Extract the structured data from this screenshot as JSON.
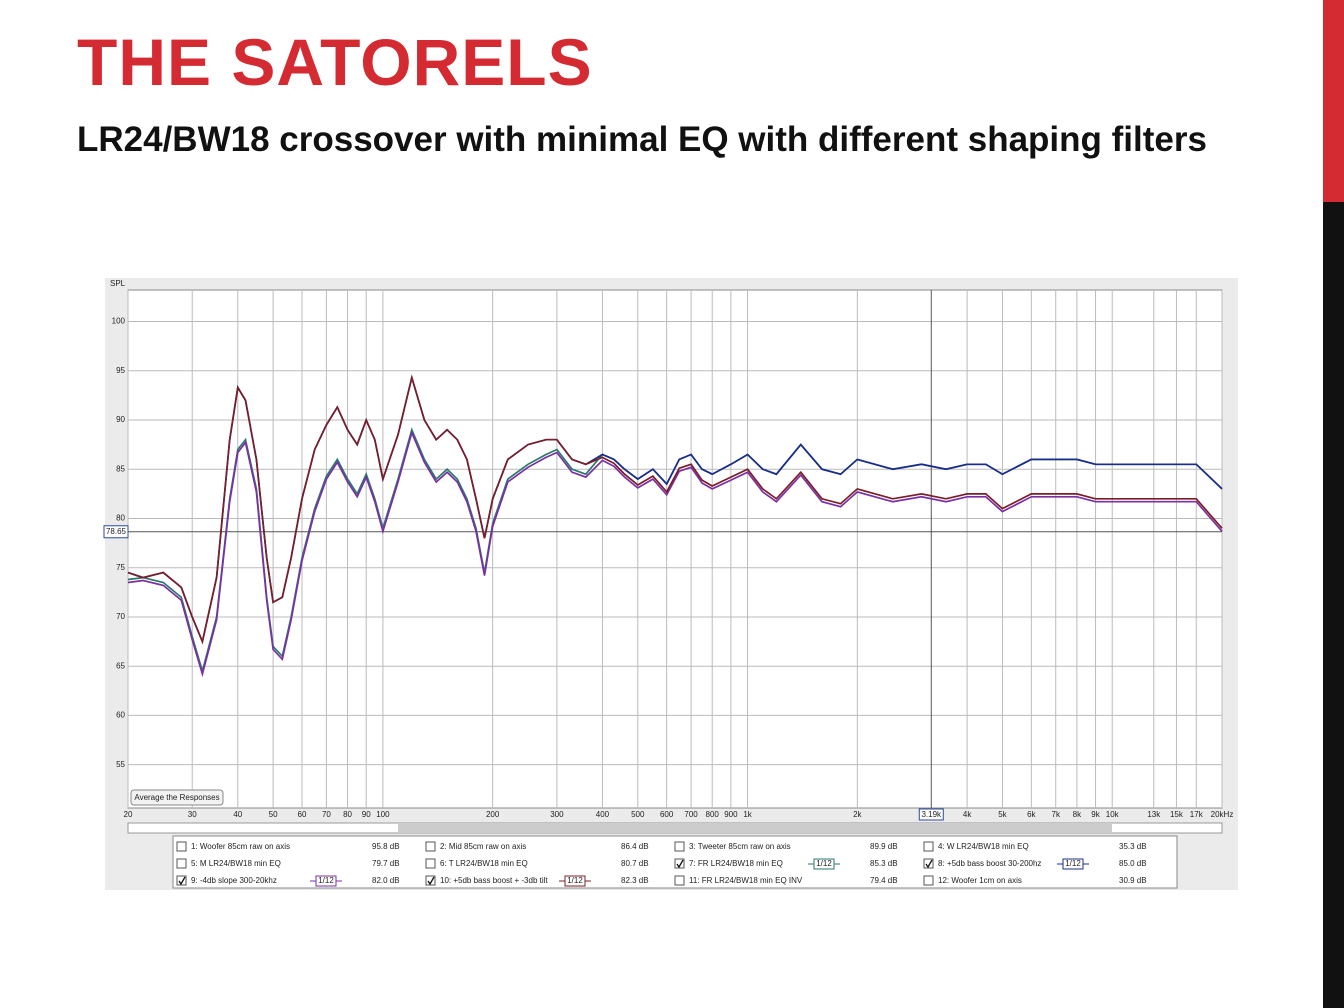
{
  "header": {
    "title": "THE SATORELS",
    "subtitle": "LR24/BW18 crossover with minimal EQ with different shaping filters"
  },
  "chart_data": {
    "type": "line",
    "y_label": "SPL",
    "x_scale": "log",
    "grid": true,
    "button": "Average the Responses",
    "smoothing": "1/12",
    "cursor": {
      "x": {
        "value": 3190,
        "label": "3.19k"
      },
      "y": 78.65
    },
    "xlim": [
      20,
      20000
    ],
    "ylim": [
      50.6,
      103.2
    ],
    "yticks": [
      55,
      60,
      65,
      70,
      75,
      80,
      85,
      90,
      95,
      100
    ],
    "xticks": [
      20,
      30,
      40,
      50,
      60,
      70,
      80,
      90,
      100,
      200,
      300,
      400,
      500,
      600,
      700,
      800,
      900,
      {
        "value": 1000,
        "label": "1k"
      },
      {
        "value": 2000,
        "label": "2k"
      },
      {
        "value": 4000,
        "label": "4k"
      },
      {
        "value": 5000,
        "label": "5k"
      },
      {
        "value": 6000,
        "label": "6k"
      },
      {
        "value": 7000,
        "label": "7k"
      },
      {
        "value": 8000,
        "label": "8k"
      },
      {
        "value": 9000,
        "label": "9k"
      },
      {
        "value": 10000,
        "label": "10k"
      },
      {
        "value": 13000,
        "label": "13k"
      },
      {
        "value": 15000,
        "label": "15k"
      },
      {
        "value": 17000,
        "label": "17k"
      },
      {
        "value": 20000,
        "label": "20kHz"
      }
    ],
    "x": [
      20,
      22,
      25,
      28,
      30,
      32,
      35,
      38,
      40,
      42,
      45,
      48,
      50,
      53,
      56,
      60,
      65,
      70,
      75,
      80,
      85,
      90,
      95,
      100,
      110,
      120,
      130,
      140,
      150,
      160,
      170,
      180,
      190,
      200,
      220,
      250,
      280,
      300,
      330,
      360,
      400,
      430,
      460,
      500,
      550,
      600,
      650,
      700,
      750,
      800,
      900,
      1000,
      1100,
      1200,
      1400,
      1600,
      1800,
      2000,
      2500,
      3000,
      3500,
      4000,
      4500,
      5000,
      6000,
      7000,
      8000,
      9000,
      10000,
      12000,
      14000,
      17000,
      20000
    ],
    "series": [
      {
        "name": "1: Woofer 85cm raw on axis",
        "level": "95.8 dB",
        "color": "#c02020",
        "visible": false
      },
      {
        "name": "2: Mid 85cm raw on axis",
        "level": "86.4 dB",
        "color": "#802020",
        "visible": false
      },
      {
        "name": "3: Tweeter 85cm raw on axis",
        "level": "89.9 dB",
        "color": "#202080",
        "visible": false
      },
      {
        "name": "4: W LR24/BW18 min EQ",
        "level": "35.3 dB",
        "color": "#308030",
        "visible": false
      },
      {
        "name": "5: M LR24/BW18 min EQ",
        "level": "79.7 dB",
        "color": "#4040a0",
        "visible": false
      },
      {
        "name": "6: T LR24/BW18 min EQ",
        "level": "80.7 dB",
        "color": "#a03030",
        "visible": false
      },
      {
        "name": "7: FR LR24/BW18 min EQ",
        "level": "85.3 dB",
        "color": "#2a7a6a",
        "visible": true,
        "values": [
          73.8,
          74,
          73.5,
          72,
          68,
          64.5,
          70,
          82,
          87,
          88,
          83,
          72,
          67,
          66,
          70,
          76,
          81,
          84.3,
          86,
          84,
          82.5,
          84.5,
          82,
          79,
          84,
          89,
          86,
          84,
          85,
          84,
          82,
          79,
          74.5,
          79.5,
          84,
          85.5,
          86.5,
          87,
          85,
          84.5,
          86.5,
          86,
          85,
          84,
          85,
          83.5,
          86,
          86.5,
          85,
          84.5,
          85.5,
          86.5,
          85,
          84.5,
          87.5,
          85,
          84.5,
          86,
          85,
          85.5,
          85,
          85.5,
          85.5,
          84.5,
          86,
          86,
          86,
          85.5,
          85.5,
          85.5,
          85.5,
          85.5,
          83
        ]
      },
      {
        "name": "8: +5db bass boost 30-200hz",
        "level": "85.0 dB",
        "color": "#1c2c8c",
        "visible": true,
        "values": [
          74.5,
          74,
          74.5,
          73,
          70,
          67.5,
          74,
          88,
          93.3,
          92,
          86,
          76,
          71.5,
          72,
          76,
          82,
          87,
          89.5,
          91.3,
          89,
          87.5,
          90,
          88,
          84,
          88.5,
          94.3,
          90,
          88,
          89,
          88,
          86,
          82,
          78,
          82,
          86,
          87.5,
          88,
          88,
          86,
          85.5,
          86.5,
          86,
          85,
          84,
          85,
          83.5,
          86,
          86.5,
          85,
          84.5,
          85.5,
          86.5,
          85,
          84.5,
          87.5,
          85,
          84.5,
          86,
          85,
          85.5,
          85,
          85.5,
          85.5,
          84.5,
          86,
          86,
          86,
          85.5,
          85.5,
          85.5,
          85.5,
          85.5,
          83
        ]
      },
      {
        "name": "9: -4db slope 300-20khz",
        "level": "82.0 dB",
        "color": "#7b2fa5",
        "visible": true,
        "values": [
          73.5,
          73.7,
          73.2,
          71.7,
          67.7,
          64.2,
          69.7,
          81.7,
          86.7,
          87.7,
          82.7,
          71.7,
          66.7,
          65.7,
          69.7,
          75.7,
          80.7,
          84,
          85.7,
          83.7,
          82.2,
          84.2,
          81.7,
          78.7,
          83.7,
          88.7,
          85.7,
          83.7,
          84.7,
          83.7,
          81.7,
          78.7,
          74.2,
          79.2,
          83.7,
          85.2,
          86.2,
          86.7,
          84.7,
          84.2,
          85.9,
          85.3,
          84.2,
          83.1,
          84,
          82.4,
          84.8,
          85.2,
          83.6,
          83,
          83.9,
          84.7,
          82.7,
          81.7,
          84.4,
          81.7,
          81.2,
          82.7,
          81.7,
          82.2,
          81.7,
          82.2,
          82.2,
          80.7,
          82.2,
          82.2,
          82.2,
          81.7,
          81.7,
          81.7,
          81.7,
          81.7,
          78.7
        ]
      },
      {
        "name": "10: +5db bass boost + -3db tilt",
        "level": "82.3 dB",
        "color": "#7a1f2a",
        "visible": true,
        "values": [
          74.5,
          74,
          74.5,
          73,
          70,
          67.5,
          74,
          88,
          93.3,
          92,
          86,
          76,
          71.5,
          72,
          76,
          82,
          87,
          89.5,
          91.3,
          89,
          87.5,
          90,
          88,
          84,
          88.5,
          94.3,
          90,
          88,
          89,
          88,
          86,
          82,
          78,
          82,
          86,
          87.5,
          88,
          88,
          86,
          85.5,
          86.2,
          85.6,
          84.5,
          83.4,
          84.3,
          82.7,
          85.1,
          85.5,
          83.9,
          83.3,
          84.2,
          85,
          83,
          82,
          84.7,
          82,
          81.5,
          83,
          82,
          82.5,
          82,
          82.5,
          82.5,
          81,
          82.5,
          82.5,
          82.5,
          82,
          82,
          82,
          82,
          82,
          79
        ]
      },
      {
        "name": "11: FR LR24/BW18 min EQ INV",
        "level": "79.4 dB",
        "color": "#c08020",
        "visible": false
      },
      {
        "name": "12: Woofer 1cm on axis",
        "level": "30.9 dB",
        "color": "#d0a030",
        "visible": false
      }
    ]
  }
}
